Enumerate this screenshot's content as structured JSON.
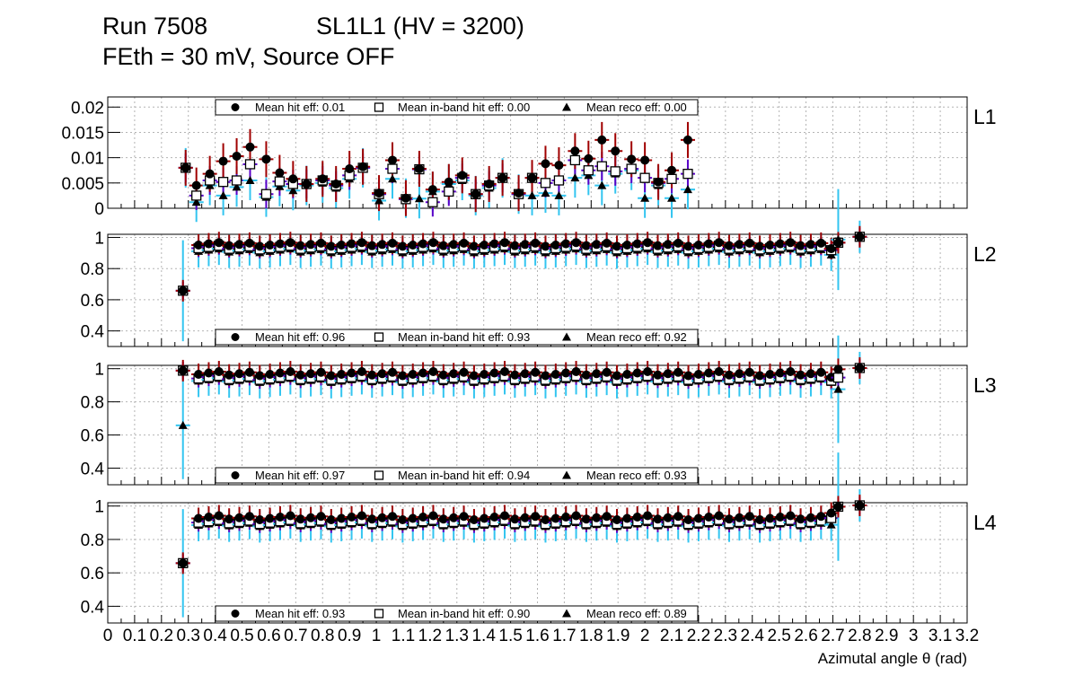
{
  "header": {
    "run": "Run 7508",
    "chamber": "SL1L1 (HV = 3200)",
    "conditions": "FEth = 30 mV, Source OFF"
  },
  "colors": {
    "hit": "#a00000",
    "inband": "#5a00c8",
    "reco": "#33c5f0",
    "grid": "#b4b4b4",
    "marker": "#000000"
  },
  "chart_data": {
    "type": "scatter",
    "xlabel": "Azimutal angle θ (rad)",
    "xlim": [
      0,
      3.2
    ],
    "xticks": [
      0,
      0.1,
      0.2,
      0.3,
      0.4,
      0.5,
      0.6,
      0.7,
      0.8,
      0.9,
      1,
      1.1,
      1.2,
      1.3,
      1.4,
      1.5,
      1.6,
      1.7,
      1.8,
      1.9,
      2,
      2.1,
      2.2,
      2.3,
      2.4,
      2.5,
      2.6,
      2.7,
      2.8,
      2.9,
      3,
      3.1,
      3.2
    ],
    "xtick_labels": [
      "0",
      "0.1",
      "0.2",
      "0.3",
      "0.4",
      "0.5",
      "0.6",
      "0.7",
      "0.8",
      "0.9",
      "1",
      "1.1",
      "1.2",
      "1.3",
      "1.4",
      "1.5",
      "1.6",
      "1.7",
      "1.8",
      "1.9",
      "2",
      "2.1",
      "2.2",
      "2.3",
      "2.4",
      "2.5",
      "2.6",
      "2.7",
      "2.8",
      "2.9",
      "3",
      "3.1",
      "3.2"
    ],
    "bin_centers": [
      0.3,
      0.338,
      0.376,
      0.414,
      0.452,
      0.49,
      0.528,
      0.566,
      0.604,
      0.642,
      0.68,
      0.718,
      0.756,
      0.794,
      0.832,
      0.87,
      0.908,
      0.946,
      0.984,
      1.022,
      1.06,
      1.098,
      1.136,
      1.174,
      1.212,
      1.25,
      1.288,
      1.326,
      1.364,
      1.402,
      1.44,
      1.478,
      1.516,
      1.554,
      1.592,
      1.63,
      1.668,
      1.706,
      1.744,
      1.782,
      1.82,
      1.858,
      1.896,
      1.934,
      1.972,
      2.01,
      2.048,
      2.086,
      2.124,
      2.162,
      2.2,
      2.238,
      2.276,
      2.314,
      2.352,
      2.39,
      2.428,
      2.466,
      2.504,
      2.542,
      2.58,
      2.618,
      2.656,
      2.694,
      2.732,
      2.77
    ],
    "panels": [
      {
        "name": "L1",
        "ylim": [
          0,
          0.022
        ],
        "yticks": [
          0,
          0.005,
          0.01,
          0.015,
          0.02
        ],
        "ytick_labels": [
          "0",
          "0.005",
          "0.01",
          "0.015",
          "0.02"
        ],
        "legend": {
          "hit": "Mean hit  eff: 0.01",
          "inband": "Mean in-band hit eff: 0.00",
          "reco": "Mean reco eff: 0.00"
        },
        "points": [
          {
            "x": 0.29,
            "hit": 0.008,
            "inband": 0.008,
            "reco": 0.008
          },
          {
            "x": 0.33,
            "hit": 0.0045,
            "inband": 0.0025,
            "reco": 0.0012
          },
          {
            "x": 0.38,
            "hit": 0.0068,
            "inband": 0.0055,
            "reco": 0.0045
          },
          {
            "x": 0.43,
            "hit": 0.0093,
            "inband": 0.0052,
            "reco": 0.0025
          },
          {
            "x": 0.48,
            "hit": 0.0103,
            "inband": 0.0055,
            "reco": 0.0042
          },
          {
            "x": 0.53,
            "hit": 0.0121,
            "inband": 0.0087,
            "reco": 0.0055
          },
          {
            "x": 0.59,
            "hit": 0.0097,
            "inband": 0.0028,
            "reco": 0.0022
          },
          {
            "x": 0.64,
            "hit": 0.007,
            "inband": 0.0053,
            "reco": 0.0043
          },
          {
            "x": 0.69,
            "hit": 0.0058,
            "inband": 0.0048,
            "reco": 0.0035
          },
          {
            "x": 0.74,
            "hit": 0.0048,
            "inband": 0.0048,
            "reco": 0.0045
          },
          {
            "x": 0.8,
            "hit": 0.0058,
            "inband": 0.0055,
            "reco": 0.005
          },
          {
            "x": 0.85,
            "hit": 0.0048,
            "inband": 0.0045,
            "reco": 0.004
          },
          {
            "x": 0.9,
            "hit": 0.0078,
            "inband": 0.0065,
            "reco": 0.0058
          },
          {
            "x": 0.95,
            "hit": 0.0082,
            "inband": 0.008,
            "reco": 0.008
          },
          {
            "x": 1.01,
            "hit": 0.003,
            "inband": 0.0028,
            "reco": 0.0015
          },
          {
            "x": 1.06,
            "hit": 0.0095,
            "inband": 0.0078,
            "reco": 0.0058
          },
          {
            "x": 1.11,
            "hit": 0.002,
            "inband": 0.0018,
            "reco": 0.002
          },
          {
            "x": 1.16,
            "hit": 0.0078,
            "inband": 0.0077,
            "reco": 0.0019
          },
          {
            "x": 1.21,
            "hit": 0.0037,
            "inband": 0.0012,
            "reco": 0.0033
          },
          {
            "x": 1.27,
            "hit": 0.0052,
            "inband": 0.0033,
            "reco": 0.0048
          },
          {
            "x": 1.32,
            "hit": 0.0065,
            "inband": 0.006,
            "reco": 0.0055
          },
          {
            "x": 1.37,
            "hit": 0.0028,
            "inband": 0.0028,
            "reco": 0.0025
          },
          {
            "x": 1.42,
            "hit": 0.0048,
            "inband": 0.0045,
            "reco": 0.004
          },
          {
            "x": 1.47,
            "hit": 0.006,
            "inband": 0.006,
            "reco": 0.006
          },
          {
            "x": 1.53,
            "hit": 0.003,
            "inband": 0.0028,
            "reco": 0.0028
          },
          {
            "x": 1.58,
            "hit": 0.006,
            "inband": 0.006,
            "reco": 0.0025
          },
          {
            "x": 1.63,
            "hit": 0.0088,
            "inband": 0.005,
            "reco": 0.003
          },
          {
            "x": 1.68,
            "hit": 0.0085,
            "inband": 0.0055,
            "reco": 0.0025
          },
          {
            "x": 1.74,
            "hit": 0.0113,
            "inband": 0.0095,
            "reco": 0.006
          },
          {
            "x": 1.79,
            "hit": 0.0098,
            "inband": 0.0075,
            "reco": 0.0065
          },
          {
            "x": 1.84,
            "hit": 0.0135,
            "inband": 0.0083,
            "reco": 0.0045
          },
          {
            "x": 1.89,
            "hit": 0.0113,
            "inband": 0.0073,
            "reco": 0.0068
          },
          {
            "x": 1.95,
            "hit": 0.0097,
            "inband": 0.0078,
            "reco": 0.0075
          },
          {
            "x": 2.0,
            "hit": 0.0095,
            "inband": 0.006,
            "reco": 0.002
          },
          {
            "x": 2.05,
            "hit": 0.0052,
            "inband": 0.005,
            "reco": 0.0045
          },
          {
            "x": 2.1,
            "hit": 0.0075,
            "inband": 0.0058,
            "reco": 0.002
          },
          {
            "x": 2.16,
            "hit": 0.0135,
            "inband": 0.0068,
            "reco": 0.0037
          }
        ]
      },
      {
        "name": "L2",
        "ylim": [
          0.3,
          1.02
        ],
        "yticks": [
          0.4,
          0.6,
          0.8,
          1
        ],
        "ytick_labels": [
          "0.4",
          "0.6",
          "0.8",
          "1"
        ],
        "legend": {
          "hit": "Mean hit  eff: 0.96",
          "inband": "Mean in-band hit eff: 0.93",
          "reco": "Mean reco eff: 0.92"
        },
        "first": {
          "hit": 0.67,
          "inband": 0.67,
          "reco": 0.67
        },
        "body": {
          "hit": 0.955,
          "inband": 0.935,
          "reco": 0.915
        },
        "tail": [
          {
            "hit": 0.94,
            "inband": 0.93,
            "reco": 0.9
          },
          {
            "hit": 0.97,
            "inband": 0.97,
            "reco": 0.99
          },
          {
            "hit": 1.0,
            "inband": 1.0,
            "reco": 1.0
          }
        ]
      },
      {
        "name": "L3",
        "ylim": [
          0.3,
          1.02
        ],
        "yticks": [
          0.4,
          0.6,
          0.8,
          1
        ],
        "ytick_labels": [
          "0.4",
          "0.6",
          "0.8",
          "1"
        ],
        "legend": {
          "hit": "Mean hit  eff: 0.97",
          "inband": "Mean in-band hit eff: 0.94",
          "reco": "Mean reco eff: 0.93"
        },
        "first": {
          "hit": 1.0,
          "inband": 1.0,
          "reco": 0.67
        },
        "body": {
          "hit": 0.97,
          "inband": 0.945,
          "reco": 0.93
        },
        "tail": [
          {
            "hit": 0.96,
            "inband": 0.94,
            "reco": 0.93
          },
          {
            "hit": 1.0,
            "inband": 0.95,
            "reco": 0.88
          },
          {
            "hit": 1.0,
            "inband": 1.0,
            "reco": 1.0
          }
        ]
      },
      {
        "name": "L4",
        "ylim": [
          0.3,
          1.02
        ],
        "yticks": [
          0.4,
          0.6,
          0.8,
          1
        ],
        "ytick_labels": [
          "0.4",
          "0.6",
          "0.8",
          "1"
        ],
        "legend": {
          "hit": "Mean hit  eff: 0.93",
          "inband": "Mean in-band hit eff: 0.90",
          "reco": "Mean reco eff: 0.89"
        },
        "first": {
          "hit": 0.67,
          "inband": 0.67,
          "reco": 0.67
        },
        "body": {
          "hit": 0.93,
          "inband": 0.905,
          "reco": 0.89
        },
        "tail": [
          {
            "hit": 0.97,
            "inband": 0.94,
            "reco": 0.9
          },
          {
            "hit": 1.0,
            "inband": 1.0,
            "reco": 1.0
          },
          {
            "hit": 1.0,
            "inband": 1.0,
            "reco": 1.0
          }
        ]
      }
    ]
  }
}
